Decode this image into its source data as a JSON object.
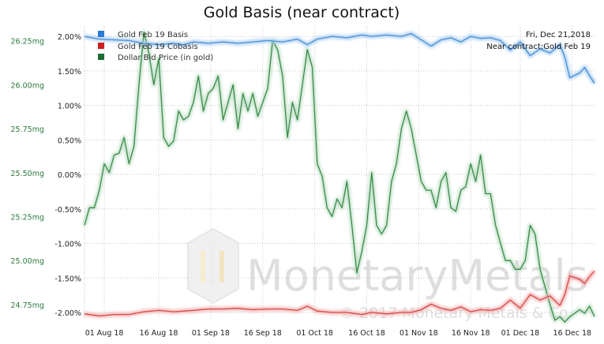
{
  "chart_data": {
    "type": "line",
    "title": "Gold Basis (near contract)",
    "x_tick_labels": [
      "01 Aug 18",
      "16 Aug 18",
      "01 Sep 18",
      "16 Sep 18",
      "01 Oct 18",
      "16 Oct 18",
      "01 Nov 18",
      "16 Nov 18",
      "01 Dec 18",
      "16 Dec 18"
    ],
    "x_range": [
      0,
      103
    ],
    "x_tick_positions": [
      4,
      15,
      25.5,
      36,
      46.5,
      57,
      67.5,
      78,
      88,
      98.5
    ],
    "right_axis": {
      "label": "",
      "range": [
        -2.08,
        2.15
      ],
      "ticks": [
        2.0,
        1.5,
        1.0,
        0.5,
        0.0,
        -0.5,
        -1.0,
        -1.5,
        -2.0
      ],
      "tick_labels": [
        "2.00%",
        "1.50%",
        "1.00%",
        "0.50%",
        "0.00%",
        "-0.50%",
        "-1.00%",
        "-1.50%",
        "-2.00%"
      ]
    },
    "left_axis": {
      "label": "",
      "range": [
        24.673,
        26.334
      ],
      "ticks": [
        26.25,
        26.0,
        25.75,
        25.5,
        25.25,
        25.0,
        24.75
      ],
      "tick_labels": [
        "26.25mg",
        "26.00mg",
        "25.75mg",
        "25.50mg",
        "25.25mg",
        "25.00mg",
        "24.75mg"
      ]
    },
    "legend": {
      "placement": "top-left",
      "items": [
        {
          "label": "Gold Feb 19 Basis",
          "color": "#2a7bd4"
        },
        {
          "label": "Gold Feb 19 Cobasis",
          "color": "#cc1f1f"
        },
        {
          "label": "Dollar Bid Price (in gold)",
          "color": "#1f6b32"
        }
      ]
    },
    "annotations": {
      "date_label": "Fri, Dec 21,2018",
      "contract_label": "Near contract:Gold Feb 19"
    },
    "series": [
      {
        "name": "Gold Feb 19 Basis",
        "axis": "right",
        "color": "#4a90d9",
        "x": [
          0,
          3,
          6,
          9,
          12,
          15,
          18,
          20,
          22,
          25,
          28,
          31,
          34,
          37,
          40,
          43,
          45,
          47,
          50,
          53,
          56,
          58,
          61,
          64,
          66,
          68,
          70,
          72,
          74,
          76,
          78,
          80,
          82,
          84,
          86,
          88,
          90,
          92,
          94,
          96,
          97,
          98,
          100,
          101,
          102,
          103
        ],
        "values": [
          2.0,
          1.96,
          1.95,
          1.94,
          1.9,
          1.88,
          1.9,
          1.88,
          1.92,
          1.9,
          1.92,
          1.9,
          1.92,
          1.94,
          1.92,
          1.96,
          1.88,
          1.96,
          2.0,
          1.98,
          2.02,
          2.0,
          2.02,
          2.0,
          2.04,
          1.95,
          1.86,
          1.95,
          1.98,
          1.92,
          2.0,
          1.97,
          1.98,
          1.94,
          1.8,
          1.92,
          1.72,
          1.82,
          1.76,
          1.88,
          1.7,
          1.4,
          1.47,
          1.55,
          1.43,
          1.32
        ]
      },
      {
        "name": "Gold Feb 19 Cobasis",
        "axis": "right",
        "color": "#d94a4a",
        "x": [
          0,
          3,
          6,
          9,
          12,
          15,
          18,
          20,
          22,
          25,
          28,
          31,
          34,
          37,
          40,
          43,
          45,
          47,
          50,
          53,
          56,
          58,
          61,
          64,
          66,
          68,
          70,
          72,
          74,
          76,
          78,
          80,
          82,
          84,
          86,
          88,
          90,
          92,
          94,
          96,
          97,
          98,
          100,
          101,
          102,
          103
        ],
        "values": [
          -2.02,
          -2.05,
          -2.03,
          -2.03,
          -1.99,
          -1.97,
          -1.99,
          -1.98,
          -1.97,
          -1.95,
          -1.95,
          -1.94,
          -1.96,
          -1.95,
          -1.95,
          -1.97,
          -1.91,
          -1.98,
          -2.0,
          -2.0,
          -2.03,
          -2.0,
          -2.02,
          -2.0,
          -2.0,
          -1.96,
          -1.88,
          -1.94,
          -1.97,
          -1.92,
          -1.99,
          -1.96,
          -1.97,
          -1.94,
          -1.82,
          -1.94,
          -1.74,
          -1.82,
          -1.76,
          -1.9,
          -1.74,
          -1.47,
          -1.52,
          -1.58,
          -1.48,
          -1.4
        ]
      },
      {
        "name": "Dollar Bid Price (in gold)",
        "axis": "left",
        "color": "#3a8a4a",
        "x": [
          0,
          1,
          2,
          3,
          4,
          5,
          6,
          7,
          8,
          9,
          10,
          11,
          12,
          13,
          14,
          15,
          16,
          17,
          18,
          19,
          20,
          21,
          22,
          23,
          24,
          25,
          26,
          27,
          28,
          29,
          30,
          31,
          32,
          33,
          34,
          35,
          36,
          37,
          38,
          39,
          40,
          41,
          42,
          43,
          44,
          45,
          46,
          47,
          48,
          49,
          50,
          51,
          52,
          53,
          54,
          55,
          56,
          57,
          58,
          59,
          60,
          61,
          62,
          63,
          64,
          65,
          66,
          67,
          68,
          69,
          70,
          71,
          72,
          73,
          74,
          75,
          76,
          77,
          78,
          79,
          80,
          81,
          82,
          83,
          84,
          85,
          86,
          87,
          88,
          89,
          90,
          91,
          92,
          93,
          94,
          95,
          96,
          97,
          98,
          99,
          100,
          101,
          102,
          103
        ],
        "values": [
          25.2,
          25.3,
          25.3,
          25.4,
          25.55,
          25.5,
          25.6,
          25.61,
          25.7,
          25.55,
          25.65,
          26.0,
          26.3,
          26.18,
          26.0,
          26.15,
          25.7,
          25.65,
          25.68,
          25.85,
          25.8,
          25.82,
          25.9,
          26.05,
          25.85,
          25.95,
          25.98,
          26.05,
          25.8,
          25.9,
          26.0,
          25.75,
          25.95,
          25.85,
          25.95,
          25.82,
          25.9,
          25.98,
          26.25,
          26.2,
          26.05,
          25.7,
          25.9,
          25.8,
          26.0,
          26.2,
          26.1,
          25.55,
          25.48,
          25.3,
          25.25,
          25.35,
          25.3,
          25.45,
          25.2,
          24.93,
          25.05,
          25.2,
          25.5,
          25.2,
          25.15,
          25.2,
          25.45,
          25.55,
          25.75,
          25.85,
          25.75,
          25.6,
          25.45,
          25.4,
          25.4,
          25.3,
          25.45,
          25.5,
          25.3,
          25.28,
          25.4,
          25.42,
          25.55,
          25.45,
          25.6,
          25.38,
          25.38,
          25.2,
          25.1,
          25.0,
          25.0,
          24.95,
          24.95,
          25.0,
          25.2,
          25.15,
          24.95,
          24.85,
          24.75,
          24.66,
          24.68,
          24.65,
          24.68,
          24.7,
          24.72,
          24.7,
          24.74,
          24.68
        ]
      }
    ]
  },
  "watermark": {
    "brand_text": "MonetaryMetals",
    "copyright_text": "© 2017 Monetary Metals & Co."
  }
}
